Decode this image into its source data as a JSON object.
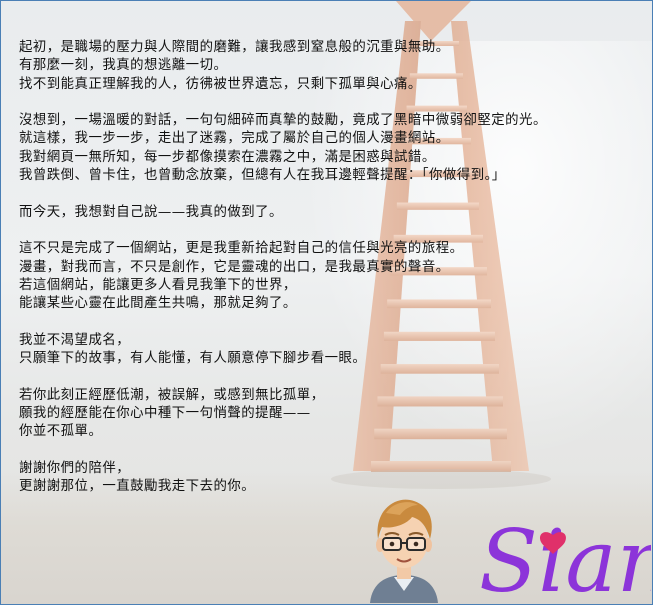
{
  "paragraphs": [
    {
      "lines": [
        "起初，是職場的壓力與人際間的磨難，讓我感到窒息般的沉重與無助。",
        "有那麼一刻，我真的想逃離一切。",
        "找不到能真正理解我的人，彷彿被世界遺忘，只剩下孤單與心痛。"
      ]
    },
    {
      "lines": [
        "沒想到，一場溫暖的對話，一句句細碎而真摯的鼓勵，竟成了黑暗中微弱卻堅定的光。",
        "就這樣，我一步一步，走出了迷霧，完成了屬於自己的個人漫畫網站。",
        "我對網頁一無所知，每一步都像摸索在濃霧之中，滿是困惑與試錯。",
        "我曾跌倒、曾卡住，也曾動念放棄，但總有人在我耳邊輕聲提醒：「你做得到。」"
      ]
    },
    {
      "lines": [
        "而今天，我想對自己說——我真的做到了。"
      ]
    },
    {
      "lines": [
        "這不只是完成了一個網站，更是我重新拾起對自己的信任與光亮的旅程。",
        "漫畫，對我而言，不只是創作，它是靈魂的出口，是我最真實的聲音。",
        "若這個網站，能讓更多人看見我筆下的世界，",
        "能讓某些心靈在此間產生共鳴，那就足夠了。"
      ]
    },
    {
      "lines": [
        "我並不渴望成名，",
        "只願筆下的故事，有人能懂，有人願意停下腳步看一眼。"
      ]
    },
    {
      "lines": [
        "若你此刻正經歷低潮，被誤解，或感到無比孤單，",
        "願我的經歷能在你心中種下一句悄聲的提醒——",
        "你並不孤單。"
      ]
    },
    {
      "lines": [
        "謝謝你們的陪伴，",
        "更謝謝那位，一直鼓勵我走下去的你。"
      ]
    }
  ],
  "signature": {
    "text": "Sian",
    "color": "#8c34d9",
    "heart_color": "#e0306a"
  },
  "colors": {
    "text": "#111111",
    "border": "#4a7fb5",
    "ladder_wood": "#e2a98a"
  }
}
